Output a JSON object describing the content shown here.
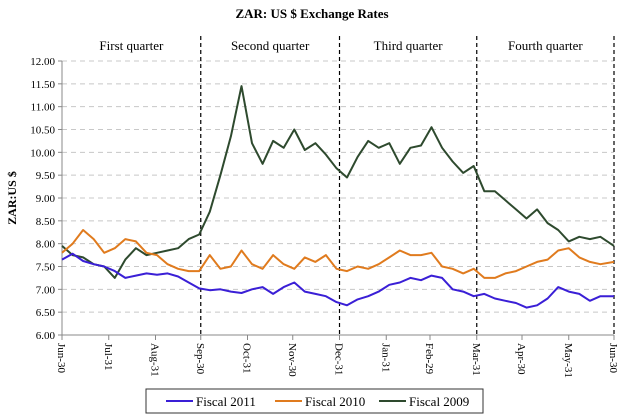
{
  "chart_data": {
    "type": "line",
    "title": "ZAR: US $ Exchange Rates",
    "xlabel": "",
    "ylabel": "ZAR:US $",
    "ylim": [
      6.0,
      12.0
    ],
    "yticks": [
      "6.00",
      "6.50",
      "7.00",
      "7.50",
      "8.00",
      "8.50",
      "9.00",
      "9.50",
      "10.00",
      "10.50",
      "11.00",
      "11.50",
      "12.00"
    ],
    "ytick_values": [
      6.0,
      6.5,
      7.0,
      7.5,
      8.0,
      8.5,
      9.0,
      9.5,
      10.0,
      10.5,
      11.0,
      11.5,
      12.0
    ],
    "grid": "horizontal-dashed",
    "x_range_days": [
      0,
      366
    ],
    "xticks": [
      {
        "label": "Jun-30",
        "day": 0
      },
      {
        "label": "Jul-31",
        "day": 31
      },
      {
        "label": "Aug-31",
        "day": 62
      },
      {
        "label": "Sep-30",
        "day": 92
      },
      {
        "label": "Oct-31",
        "day": 123
      },
      {
        "label": "Nov-30",
        "day": 153
      },
      {
        "label": "Dec-31",
        "day": 184
      },
      {
        "label": "Jan-31",
        "day": 215
      },
      {
        "label": "Feb-29",
        "day": 244
      },
      {
        "label": "Mar-31",
        "day": 275
      },
      {
        "label": "Apr-30",
        "day": 305
      },
      {
        "label": "May-31",
        "day": 336
      },
      {
        "label": "Jun-30",
        "day": 366
      }
    ],
    "quarters": [
      {
        "label": "First quarter",
        "start_day": 0,
        "end_day": 92
      },
      {
        "label": "Second quarter",
        "start_day": 92,
        "end_day": 184
      },
      {
        "label": "Third quarter",
        "start_day": 184,
        "end_day": 275
      },
      {
        "label": "Fourth quarter",
        "start_day": 275,
        "end_day": 366
      }
    ],
    "quarter_dividers_days": [
      92,
      184,
      275,
      366
    ],
    "legend_position": "bottom",
    "series": [
      {
        "name": "Fiscal 2011",
        "color": "#3a1fd6",
        "x_days": [
          0,
          7,
          14,
          21,
          28,
          35,
          42,
          49,
          56,
          63,
          70,
          77,
          84,
          91,
          98,
          105,
          112,
          119,
          126,
          133,
          140,
          147,
          154,
          161,
          168,
          175,
          182,
          189,
          196,
          203,
          210,
          217,
          224,
          231,
          238,
          245,
          252,
          259,
          266,
          273,
          280,
          287,
          294,
          301,
          308,
          315,
          322,
          329,
          336,
          343,
          350,
          357,
          366
        ],
        "values": [
          7.65,
          7.78,
          7.62,
          7.55,
          7.5,
          7.4,
          7.25,
          7.3,
          7.35,
          7.32,
          7.35,
          7.28,
          7.15,
          7.02,
          6.98,
          7.0,
          6.95,
          6.92,
          7.0,
          7.05,
          6.9,
          7.05,
          7.15,
          6.95,
          6.9,
          6.85,
          6.72,
          6.65,
          6.78,
          6.85,
          6.95,
          7.1,
          7.15,
          7.25,
          7.2,
          7.3,
          7.25,
          7.0,
          6.95,
          6.85,
          6.9,
          6.8,
          6.75,
          6.7,
          6.6,
          6.65,
          6.8,
          7.05,
          6.95,
          6.9,
          6.75,
          6.85,
          6.85
        ]
      },
      {
        "name": "Fiscal 2010",
        "color": "#e07b1e",
        "x_days": [
          0,
          7,
          14,
          21,
          28,
          35,
          42,
          49,
          56,
          63,
          70,
          77,
          84,
          91,
          98,
          105,
          112,
          119,
          126,
          133,
          140,
          147,
          154,
          161,
          168,
          175,
          182,
          189,
          196,
          203,
          210,
          217,
          224,
          231,
          238,
          245,
          252,
          259,
          266,
          273,
          280,
          287,
          294,
          301,
          308,
          315,
          322,
          329,
          336,
          343,
          350,
          357,
          366
        ],
        "values": [
          7.8,
          8.0,
          8.3,
          8.1,
          7.8,
          7.9,
          8.1,
          8.05,
          7.8,
          7.75,
          7.55,
          7.45,
          7.4,
          7.4,
          7.75,
          7.45,
          7.5,
          7.85,
          7.55,
          7.45,
          7.75,
          7.55,
          7.45,
          7.7,
          7.6,
          7.75,
          7.45,
          7.4,
          7.5,
          7.45,
          7.55,
          7.7,
          7.85,
          7.75,
          7.75,
          7.8,
          7.5,
          7.45,
          7.35,
          7.45,
          7.25,
          7.25,
          7.35,
          7.4,
          7.5,
          7.6,
          7.65,
          7.85,
          7.9,
          7.7,
          7.6,
          7.55,
          7.6
        ]
      },
      {
        "name": "Fiscal 2009",
        "color": "#2e4a2e",
        "x_days": [
          0,
          7,
          14,
          21,
          28,
          35,
          42,
          49,
          56,
          63,
          70,
          77,
          84,
          91,
          98,
          105,
          112,
          119,
          126,
          133,
          140,
          147,
          154,
          161,
          168,
          175,
          182,
          189,
          196,
          203,
          210,
          217,
          224,
          231,
          238,
          245,
          252,
          259,
          266,
          273,
          280,
          287,
          294,
          301,
          308,
          315,
          322,
          329,
          336,
          343,
          350,
          357,
          366
        ],
        "values": [
          7.95,
          7.75,
          7.7,
          7.55,
          7.5,
          7.25,
          7.65,
          7.9,
          7.75,
          7.8,
          7.85,
          7.9,
          8.1,
          8.2,
          8.7,
          9.5,
          10.35,
          11.45,
          10.2,
          9.75,
          10.25,
          10.1,
          10.5,
          10.05,
          10.2,
          9.95,
          9.65,
          9.45,
          9.9,
          10.25,
          10.1,
          10.2,
          9.75,
          10.1,
          10.15,
          10.55,
          10.1,
          9.8,
          9.55,
          9.7,
          9.15,
          9.15,
          8.95,
          8.75,
          8.55,
          8.75,
          8.45,
          8.3,
          8.05,
          8.15,
          8.1,
          8.15,
          7.95
        ]
      }
    ]
  }
}
